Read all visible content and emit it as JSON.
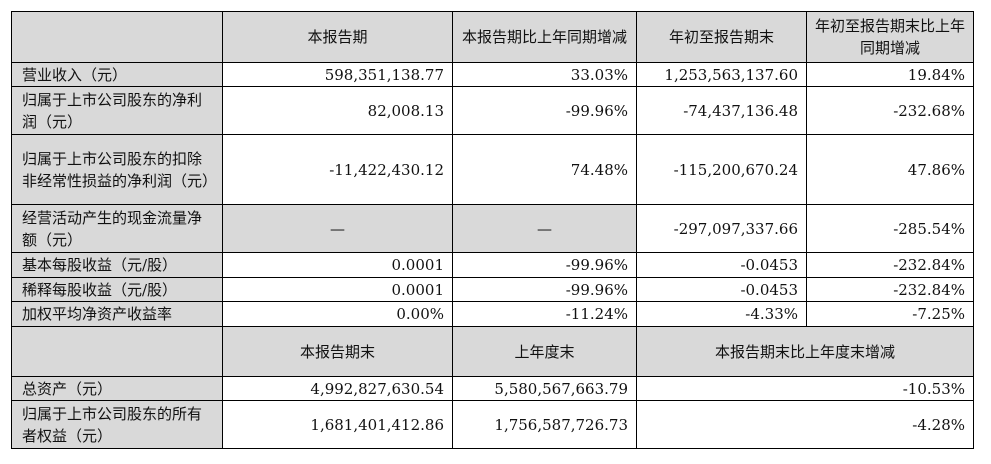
{
  "header1": [
    "",
    "本报告期",
    "本报告期比上年同期增减",
    "年初至报告期末",
    "年初至报告期末比上年同期增减"
  ],
  "rows1": [
    {
      "label": "营业收入（元）",
      "values": [
        "598,351,138.77",
        "33.03%",
        "1,253,563,137.60",
        "19.84%"
      ]
    },
    {
      "label": "归属于上市公司股东的净利润（元）",
      "values": [
        "82,008.13",
        "-99.96%",
        "-74,437,136.48",
        "-232.68%"
      ]
    },
    {
      "label": "归属于上市公司股东的扣除非经常性损益的净利润（元）",
      "values": [
        "-11,422,430.12",
        "74.48%",
        "-115,200,670.24",
        "47.86%"
      ]
    },
    {
      "label": "经营活动产生的现金流量净额（元）",
      "values": [
        "—",
        "—",
        "-297,097,337.66",
        "-285.54%"
      ]
    },
    {
      "label": "基本每股收益（元/股）",
      "values": [
        "0.0001",
        "-99.96%",
        "-0.0453",
        "-232.84%"
      ]
    },
    {
      "label": "稀释每股收益（元/股）",
      "values": [
        "0.0001",
        "-99.96%",
        "-0.0453",
        "-232.84%"
      ]
    },
    {
      "label": "加权平均净资产收益率",
      "values": [
        "0.00%",
        "-11.24%",
        "-4.33%",
        "-7.25%"
      ]
    }
  ],
  "header2": [
    "",
    "本报告期末",
    "上年度末",
    "本报告期末比上年度末增减"
  ],
  "rows2": [
    {
      "label": "总资产（元）",
      "values": [
        "4,992,827,630.54",
        "5,580,567,663.79",
        "-10.53%"
      ]
    },
    {
      "label": "归属于上市公司股东的所有者权益（元）",
      "values": [
        "1,681,401,412.86",
        "1,756,587,726.73",
        "-4.28%"
      ]
    }
  ]
}
